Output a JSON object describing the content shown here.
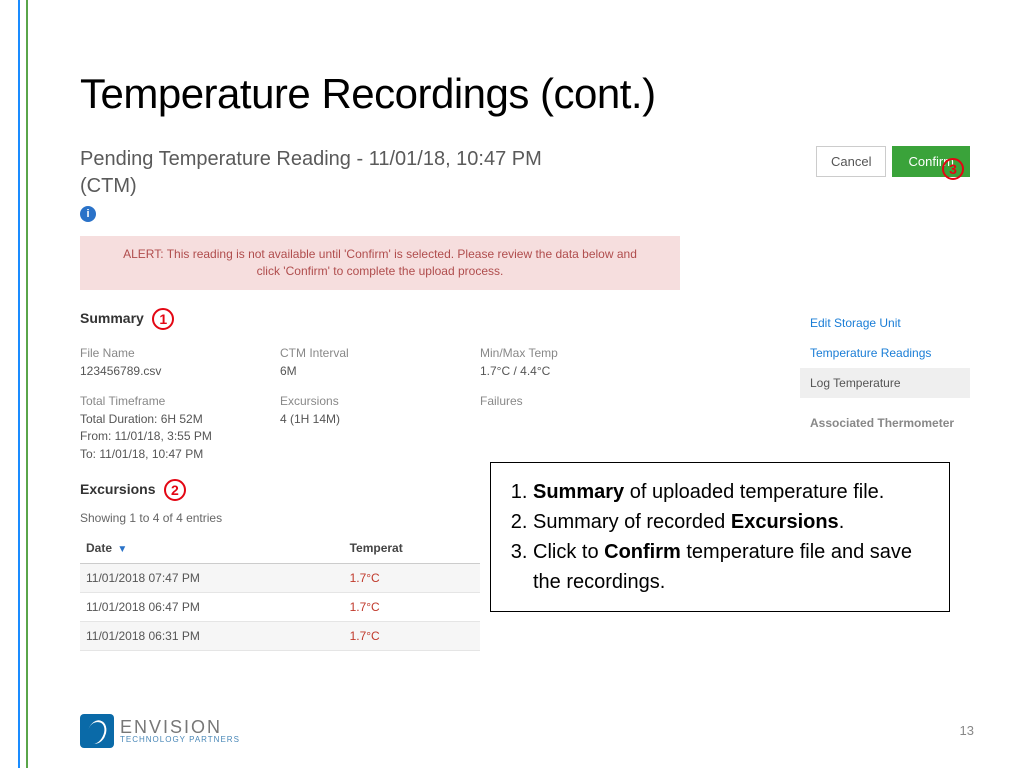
{
  "slide": {
    "title": "Temperature Recordings (cont.)",
    "page_number": "13",
    "callouts": {
      "c1": "1",
      "c2": "2",
      "c3": "3"
    }
  },
  "screenshot": {
    "header_title": "Pending Temperature Reading - 11/01/18, 10:47 PM (CTM)",
    "info_glyph": "i",
    "cancel_label": "Cancel",
    "confirm_label": "Confirm",
    "alert_text": "ALERT: This reading is not available until 'Confirm' is selected. Please review the data below and click 'Confirm' to complete the upload process.",
    "summary_label": "Summary",
    "meta": {
      "file_name_lbl": "File Name",
      "file_name_val": "123456789.csv",
      "ctm_lbl": "CTM Interval",
      "ctm_val": "6M",
      "minmax_lbl": "Min/Max Temp",
      "minmax_val": "1.7°C / 4.4°C",
      "timeframe_lbl": "Total Timeframe",
      "timeframe_val": "Total Duration: 6H 52M\nFrom: 11/01/18, 3:55 PM\nTo: 11/01/18, 10:47 PM",
      "exc_lbl": "Excursions",
      "exc_val": "4 (1H 14M)",
      "fail_lbl": "Failures"
    },
    "excursions_label": "Excursions",
    "showing_text": "Showing 1 to 4 of 4 entries",
    "table": {
      "col_date": "Date",
      "col_temp": "Temperat",
      "sort_glyph": "▼",
      "rows": [
        {
          "date": "11/01/2018 07:47 PM",
          "temp": "1.7°C"
        },
        {
          "date": "11/01/2018 06:47 PM",
          "temp": "1.7°C"
        },
        {
          "date": "11/01/2018 06:31 PM",
          "temp": "1.7°C"
        }
      ]
    },
    "side": {
      "edit": "Edit Storage Unit",
      "readings": "Temperature Readings",
      "log": "Log Temperature",
      "assoc": "Associated Thermometer"
    }
  },
  "annot": {
    "i1a": "Summary",
    "i1b": " of uploaded temperature file.",
    "i2a": "Summary of recorded ",
    "i2b": "Excursions",
    "i2c": ".",
    "i3a": "Click to ",
    "i3b": "Confirm",
    "i3c": " temperature file and save the recordings."
  },
  "logo": {
    "line1": "ENVISION",
    "line2": "TECHNOLOGY PARTNERS"
  },
  "colors": {
    "accent_green": "#3aa33a",
    "alert_bg": "#f6dede",
    "alert_text": "#b04d4d",
    "callout_red": "#e30613",
    "link_blue": "#1a7dd6"
  }
}
